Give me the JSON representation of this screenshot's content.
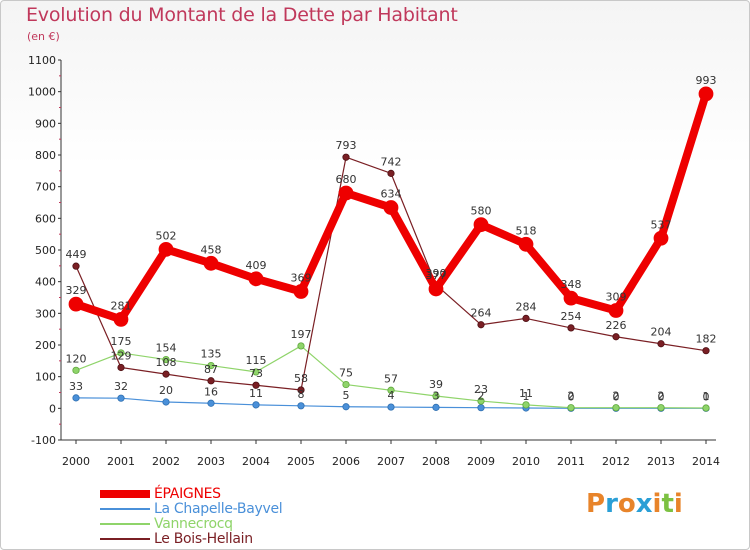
{
  "title": "Evolution du Montant de la Dette par Habitant",
  "subtitle": "(en €)",
  "logo": {
    "text": "Proxiti",
    "letter_colors": [
      "#e8842a",
      "#2a9fd6",
      "#e8842a",
      "#2a9fd6",
      "#e8842a",
      "#7cc142",
      "#e8842a"
    ]
  },
  "chart_data": {
    "type": "line",
    "title": "Evolution du Montant de la Dette par Habitant",
    "ylabel": "(en €)",
    "xlabel": "",
    "x": [
      "2000",
      "2001",
      "2002",
      "2003",
      "2004",
      "2005",
      "2006",
      "2007",
      "2008",
      "2009",
      "2010",
      "2011",
      "2012",
      "2013",
      "2014"
    ],
    "ylim": [
      -100,
      1100
    ],
    "yticks": [
      "-100",
      "0",
      "100",
      "200",
      "300",
      "400",
      "500",
      "600",
      "700",
      "800",
      "900",
      "1000",
      "1100"
    ],
    "grid": false,
    "legend_position": "bottom-left",
    "series": [
      {
        "name": "ÉPAIGNES",
        "color": "#ee0000",
        "values": [
          329,
          281,
          502,
          458,
          409,
          369,
          680,
          634,
          377,
          580,
          518,
          348,
          309,
          537,
          993
        ],
        "labels": [
          "329",
          "281",
          "502",
          "458",
          "409",
          "369",
          "680",
          "634",
          "377",
          "580",
          "518",
          "348",
          "309",
          "537",
          "993"
        ]
      },
      {
        "name": "La Chapelle-Bayvel",
        "color": "#4a90d9",
        "values": [
          33,
          32,
          20,
          16,
          11,
          8,
          5,
          4,
          3,
          2,
          1,
          0,
          0,
          0,
          0
        ],
        "labels": [
          "33",
          "32",
          "20",
          "16",
          "11",
          "8",
          "5",
          "4",
          "3",
          "2",
          "1",
          "0",
          "0",
          "0",
          "0"
        ]
      },
      {
        "name": "Vannecrocq",
        "color": "#8fd46a",
        "values": [
          120,
          175,
          154,
          135,
          115,
          197,
          75,
          57,
          39,
          23,
          11,
          2,
          2,
          2,
          1
        ],
        "labels": [
          "120",
          "175",
          "154",
          "135",
          "115",
          "197",
          "75",
          "57",
          "39",
          "23",
          "11",
          "2",
          "2",
          "2",
          "1"
        ]
      },
      {
        "name": "Le Bois-Hellain",
        "color": "#7a1f24",
        "values": [
          449,
          129,
          108,
          87,
          73,
          58,
          793,
          742,
          390,
          264,
          284,
          254,
          226,
          204,
          182
        ],
        "labels": [
          "449",
          "129",
          "108",
          "87",
          "73",
          "58",
          "793",
          "742",
          "390",
          "264",
          "284",
          "254",
          "226",
          "204",
          "182"
        ]
      }
    ]
  }
}
